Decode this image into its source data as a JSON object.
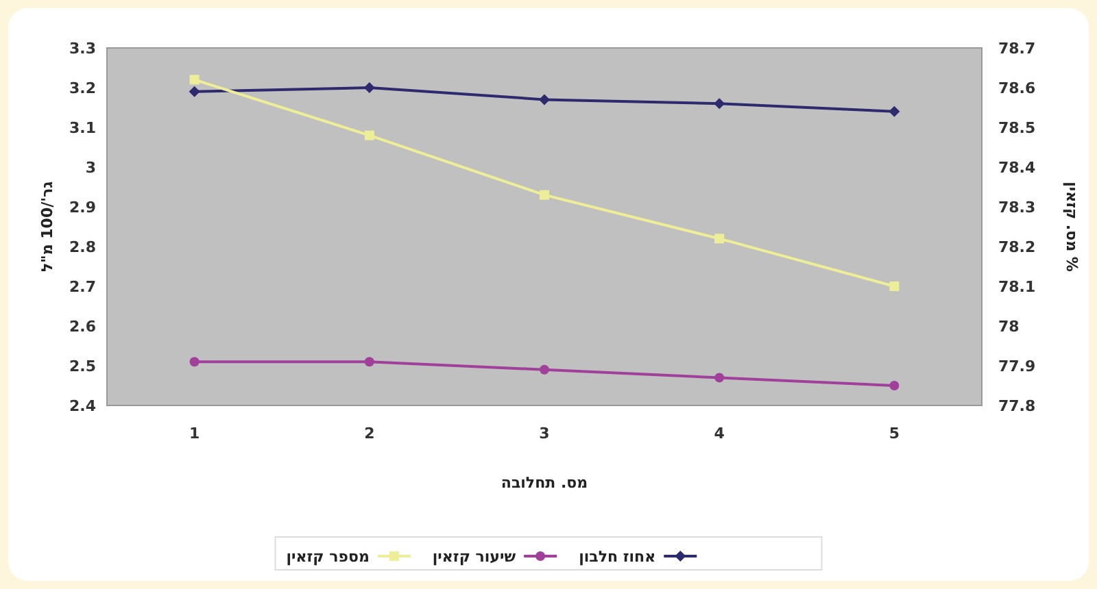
{
  "chart_data": {
    "type": "line",
    "xlabel": "מס. תחלובה",
    "ylabel": "גר'/100 מ\"ל",
    "y2label": "מס. קזאין %",
    "categories": [
      "1",
      "2",
      "3",
      "4",
      "5"
    ],
    "series": [
      {
        "name": "אחוז חלבון",
        "color": "#2e2a6e",
        "marker": "diamond",
        "values": [
          3.19,
          3.2,
          3.17,
          3.16,
          3.14
        ]
      },
      {
        "name": "שיעור קזאין",
        "color": "#a0409a",
        "marker": "circle",
        "values": [
          2.51,
          2.51,
          2.49,
          2.47,
          2.45
        ]
      },
      {
        "name": "מספר קזאין",
        "color": "#eeee99",
        "marker": "square",
        "axis": "y2",
        "values": [
          78.62,
          78.48,
          78.33,
          78.22,
          78.1
        ]
      }
    ],
    "ylim": [
      2.4,
      3.3
    ],
    "yticks": [
      2.4,
      2.5,
      2.6,
      2.7,
      2.8,
      2.9,
      {
        "value": 3,
        "label": "3"
      },
      3.1,
      3.2,
      3.3
    ],
    "y2lim": [
      77.8,
      78.7
    ],
    "y2ticks": [
      77.8,
      77.9,
      {
        "value": 78,
        "label": "78"
      },
      78.1,
      78.2,
      78.3,
      78.4,
      78.5,
      78.6,
      78.7
    ],
    "grid": false,
    "legend": "bottom"
  }
}
